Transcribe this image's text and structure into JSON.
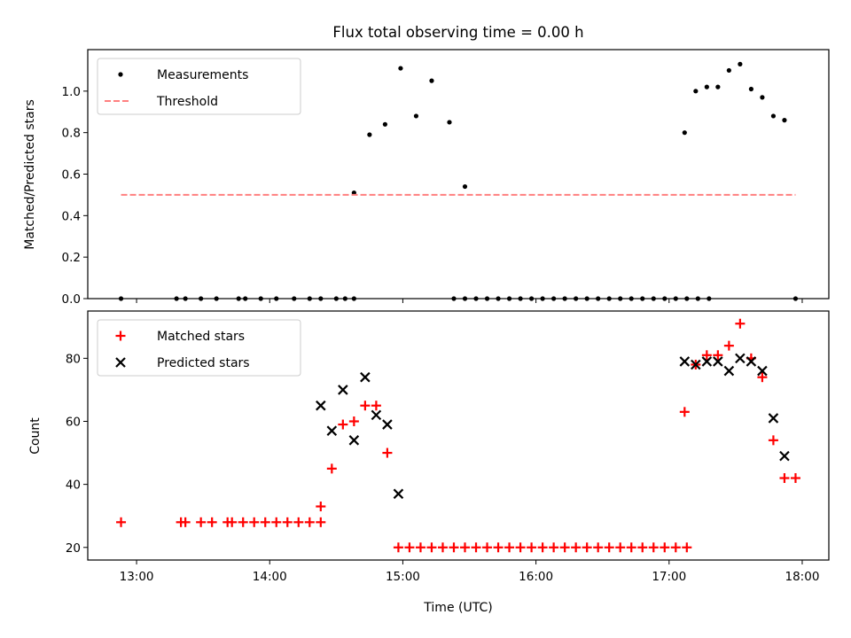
{
  "chart_data": [
    {
      "type": "scatter",
      "title": "Flux total observing time = 0.00 h",
      "xlabel": "",
      "ylabel": "Matched/Predicted stars",
      "ylim": [
        0,
        1.2
      ],
      "yticks": [
        "0.0",
        "0.2",
        "0.4",
        "0.6",
        "0.8",
        "1.0"
      ],
      "legend_placement": "upper-left",
      "grid": false,
      "series": [
        {
          "name": "Measurements",
          "marker": "dot",
          "color": "#000000",
          "points": [
            [
              "12:53",
              0
            ],
            [
              "13:18",
              0
            ],
            [
              "13:22",
              0
            ],
            [
              "13:29",
              0
            ],
            [
              "13:36",
              0
            ],
            [
              "13:46",
              0
            ],
            [
              "13:49",
              0
            ],
            [
              "13:56",
              0
            ],
            [
              "14:03",
              0
            ],
            [
              "14:11",
              0
            ],
            [
              "14:18",
              0
            ],
            [
              "14:23",
              0
            ],
            [
              "14:30",
              0
            ],
            [
              "14:34",
              0
            ],
            [
              "14:38",
              0
            ],
            [
              "14:38",
              0.51
            ],
            [
              "14:45",
              0.79
            ],
            [
              "14:52",
              0.84
            ],
            [
              "14:59",
              1.11
            ],
            [
              "15:06",
              0.88
            ],
            [
              "15:13",
              1.05
            ],
            [
              "15:21",
              0.85
            ],
            [
              "15:28",
              0.54
            ],
            [
              "15:23",
              0
            ],
            [
              "15:28",
              0
            ],
            [
              "15:33",
              0
            ],
            [
              "15:38",
              0
            ],
            [
              "15:43",
              0
            ],
            [
              "15:48",
              0
            ],
            [
              "15:53",
              0
            ],
            [
              "15:58",
              0
            ],
            [
              "16:03",
              0
            ],
            [
              "16:08",
              0
            ],
            [
              "16:13",
              0
            ],
            [
              "16:18",
              0
            ],
            [
              "16:23",
              0
            ],
            [
              "16:28",
              0
            ],
            [
              "16:33",
              0
            ],
            [
              "16:38",
              0
            ],
            [
              "16:43",
              0
            ],
            [
              "16:48",
              0
            ],
            [
              "16:53",
              0
            ],
            [
              "16:58",
              0
            ],
            [
              "17:03",
              0
            ],
            [
              "17:08",
              0
            ],
            [
              "17:13",
              0
            ],
            [
              "17:18",
              0
            ],
            [
              "17:07",
              0.8
            ],
            [
              "17:12",
              1.0
            ],
            [
              "17:17",
              1.02
            ],
            [
              "17:22",
              1.02
            ],
            [
              "17:27",
              1.1
            ],
            [
              "17:32",
              1.13
            ],
            [
              "17:37",
              1.01
            ],
            [
              "17:42",
              0.97
            ],
            [
              "17:47",
              0.88
            ],
            [
              "17:52",
              0.86
            ],
            [
              "17:57",
              0
            ]
          ]
        },
        {
          "name": "Threshold",
          "line": "dashed",
          "color": "#ff7f7f",
          "points": [
            [
              "12:53",
              0.5
            ],
            [
              "17:57",
              0.5
            ]
          ]
        }
      ]
    },
    {
      "type": "scatter",
      "title": "",
      "xlabel": "Time (UTC)",
      "ylabel": "Count",
      "ylim": [
        16,
        95
      ],
      "yticks": [
        "20",
        "40",
        "60",
        "80"
      ],
      "xticks": [
        "13:00",
        "14:00",
        "15:00",
        "16:00",
        "17:00",
        "18:00"
      ],
      "xlim": [
        "12:38",
        "18:12"
      ],
      "legend_placement": "upper-left",
      "grid": false,
      "series": [
        {
          "name": "Matched stars",
          "marker": "plus",
          "color": "#ff0000",
          "points": [
            [
              "12:53",
              28
            ],
            [
              "13:20",
              28
            ],
            [
              "13:22",
              28
            ],
            [
              "13:29",
              28
            ],
            [
              "13:34",
              28
            ],
            [
              "13:41",
              28
            ],
            [
              "13:43",
              28
            ],
            [
              "13:48",
              28
            ],
            [
              "13:53",
              28
            ],
            [
              "13:58",
              28
            ],
            [
              "14:03",
              28
            ],
            [
              "14:08",
              28
            ],
            [
              "14:13",
              28
            ],
            [
              "14:18",
              28
            ],
            [
              "14:23",
              28
            ],
            [
              "14:23",
              33
            ],
            [
              "14:28",
              45
            ],
            [
              "14:33",
              59
            ],
            [
              "14:38",
              60
            ],
            [
              "14:43",
              65
            ],
            [
              "14:48",
              65
            ],
            [
              "14:53",
              50
            ],
            [
              "14:58",
              20
            ],
            [
              "15:03",
              20
            ],
            [
              "15:08",
              20
            ],
            [
              "15:13",
              20
            ],
            [
              "15:18",
              20
            ],
            [
              "15:23",
              20
            ],
            [
              "15:28",
              20
            ],
            [
              "15:33",
              20
            ],
            [
              "15:38",
              20
            ],
            [
              "15:43",
              20
            ],
            [
              "15:48",
              20
            ],
            [
              "15:53",
              20
            ],
            [
              "15:58",
              20
            ],
            [
              "16:03",
              20
            ],
            [
              "16:08",
              20
            ],
            [
              "16:13",
              20
            ],
            [
              "16:18",
              20
            ],
            [
              "16:23",
              20
            ],
            [
              "16:28",
              20
            ],
            [
              "16:33",
              20
            ],
            [
              "16:38",
              20
            ],
            [
              "16:43",
              20
            ],
            [
              "16:48",
              20
            ],
            [
              "16:53",
              20
            ],
            [
              "16:58",
              20
            ],
            [
              "17:03",
              20
            ],
            [
              "17:08",
              20
            ],
            [
              "17:07",
              63
            ],
            [
              "17:12",
              78
            ],
            [
              "17:17",
              81
            ],
            [
              "17:22",
              81
            ],
            [
              "17:27",
              84
            ],
            [
              "17:32",
              91
            ],
            [
              "17:37",
              80
            ],
            [
              "17:42",
              74
            ],
            [
              "17:47",
              54
            ],
            [
              "17:52",
              42
            ],
            [
              "17:57",
              42
            ]
          ]
        },
        {
          "name": "Predicted stars",
          "marker": "x",
          "color": "#000000",
          "points": [
            [
              "14:23",
              65
            ],
            [
              "14:28",
              57
            ],
            [
              "14:33",
              70
            ],
            [
              "14:38",
              54
            ],
            [
              "14:43",
              74
            ],
            [
              "14:48",
              62
            ],
            [
              "14:53",
              59
            ],
            [
              "14:58",
              37
            ],
            [
              "17:07",
              79
            ],
            [
              "17:12",
              78
            ],
            [
              "17:17",
              79
            ],
            [
              "17:22",
              79
            ],
            [
              "17:27",
              76
            ],
            [
              "17:32",
              80
            ],
            [
              "17:37",
              79
            ],
            [
              "17:42",
              76
            ],
            [
              "17:47",
              61
            ],
            [
              "17:52",
              49
            ]
          ]
        }
      ]
    }
  ]
}
